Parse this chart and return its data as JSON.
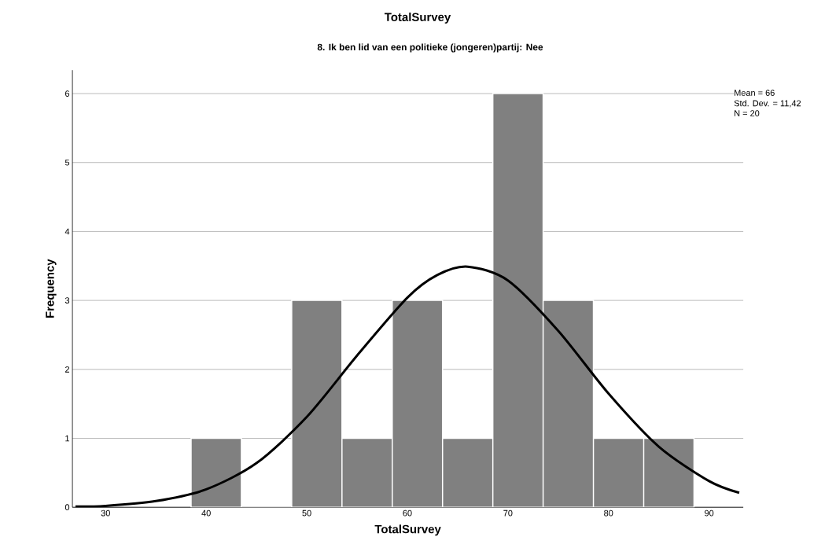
{
  "chart_data": {
    "type": "histogram",
    "title": "TotalSurvey",
    "subtitle": "8. Ik ben lid van een politieke (jongeren)partij: Nee",
    "xlabel": "TotalSurvey",
    "ylabel": "Frequency",
    "bins": [
      38.5,
      43.5,
      48.5,
      53.5,
      58.5,
      63.5,
      68.5,
      73.5,
      78.5,
      83.5,
      88.5
    ],
    "values": [
      1,
      0,
      3,
      1,
      3,
      1,
      6,
      3,
      1,
      1
    ],
    "color": "#808080",
    "series": [
      {
        "type": "line",
        "color": "#000000",
        "x": [
          27,
          30,
          35,
          40,
          45,
          50,
          55,
          60,
          63,
          66,
          70,
          75,
          80,
          85,
          90,
          93
        ],
        "values": [
          0.01,
          0.02,
          0.09,
          0.26,
          0.64,
          1.31,
          2.2,
          3.04,
          3.37,
          3.49,
          3.29,
          2.56,
          1.65,
          0.88,
          0.38,
          0.21
        ]
      }
    ],
    "annotations": [
      "Mean = 66",
      "Std. Dev. = 11,42",
      "N = 20"
    ],
    "xlim": [
      26.7,
      93.4
    ],
    "ylim": [
      0,
      6.34
    ],
    "xticks": [
      30,
      40,
      50,
      60,
      70,
      80,
      90
    ],
    "yticks": [
      0,
      1,
      2,
      3,
      4,
      5,
      6
    ],
    "grid": "y"
  }
}
